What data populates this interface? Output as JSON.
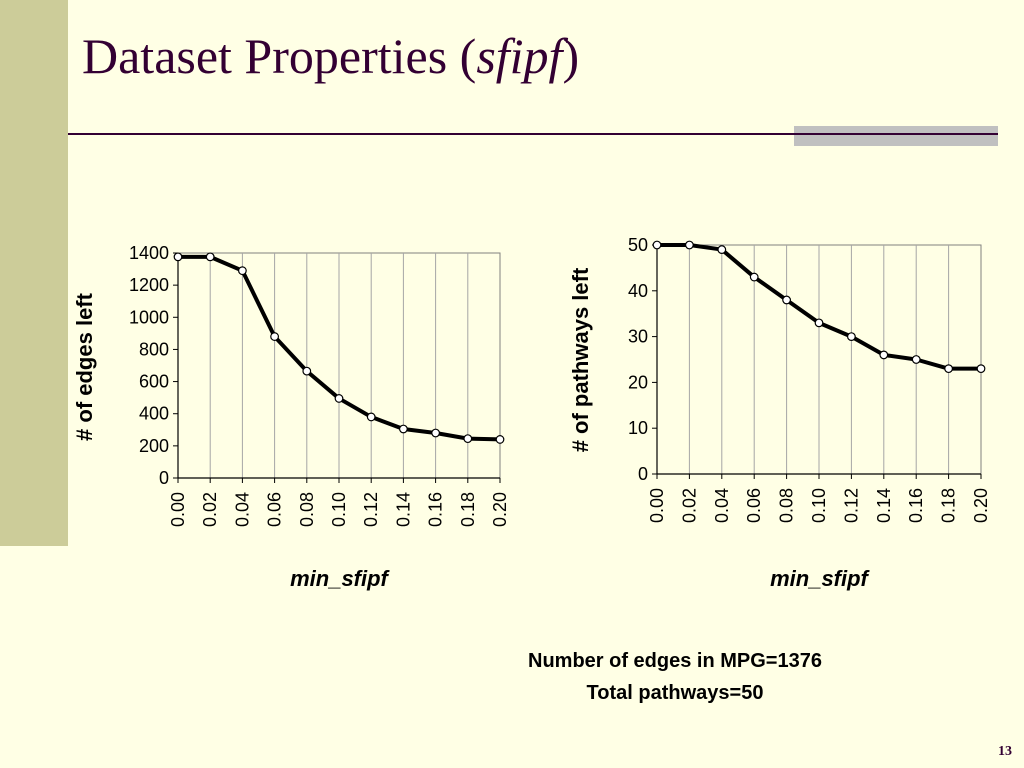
{
  "slide": {
    "title_main": "Dataset Properties (",
    "title_italic": "sfipf",
    "title_close": ")",
    "note_line1": "Number of edges in MPG=1376",
    "note_line2": "Total pathways=50",
    "page_number": "13",
    "colors": {
      "background": "#FFFFE5",
      "side_band": "#CCCC99",
      "title": "#330033",
      "line": "#000000",
      "marker_fill": "#FFFFFF"
    }
  },
  "chart_data": [
    {
      "type": "line",
      "ylabel": "# of edges left",
      "xlabel": "min_sfipf",
      "categories": [
        "0.00",
        "0.02",
        "0.04",
        "0.06",
        "0.08",
        "0.10",
        "0.12",
        "0.14",
        "0.16",
        "0.18",
        "0.20"
      ],
      "values": [
        1376,
        1376,
        1290,
        880,
        665,
        495,
        380,
        305,
        280,
        245,
        240
      ],
      "ylim": [
        0,
        1400
      ],
      "yticks": [
        "0",
        "200",
        "400",
        "600",
        "800",
        "1000",
        "1200",
        "1400"
      ],
      "grid": true,
      "legend": "none"
    },
    {
      "type": "line",
      "ylabel": "# of pathways left",
      "xlabel": "min_sfipf",
      "categories": [
        "0.00",
        "0.02",
        "0.04",
        "0.06",
        "0.08",
        "0.10",
        "0.12",
        "0.14",
        "0.16",
        "0.18",
        "0.20"
      ],
      "values": [
        50,
        50,
        49,
        43,
        38,
        33,
        30,
        26,
        25,
        23,
        23
      ],
      "ylim": [
        0,
        50
      ],
      "yticks": [
        "0",
        "10",
        "20",
        "30",
        "40",
        "50"
      ],
      "grid": true,
      "legend": "none"
    }
  ]
}
